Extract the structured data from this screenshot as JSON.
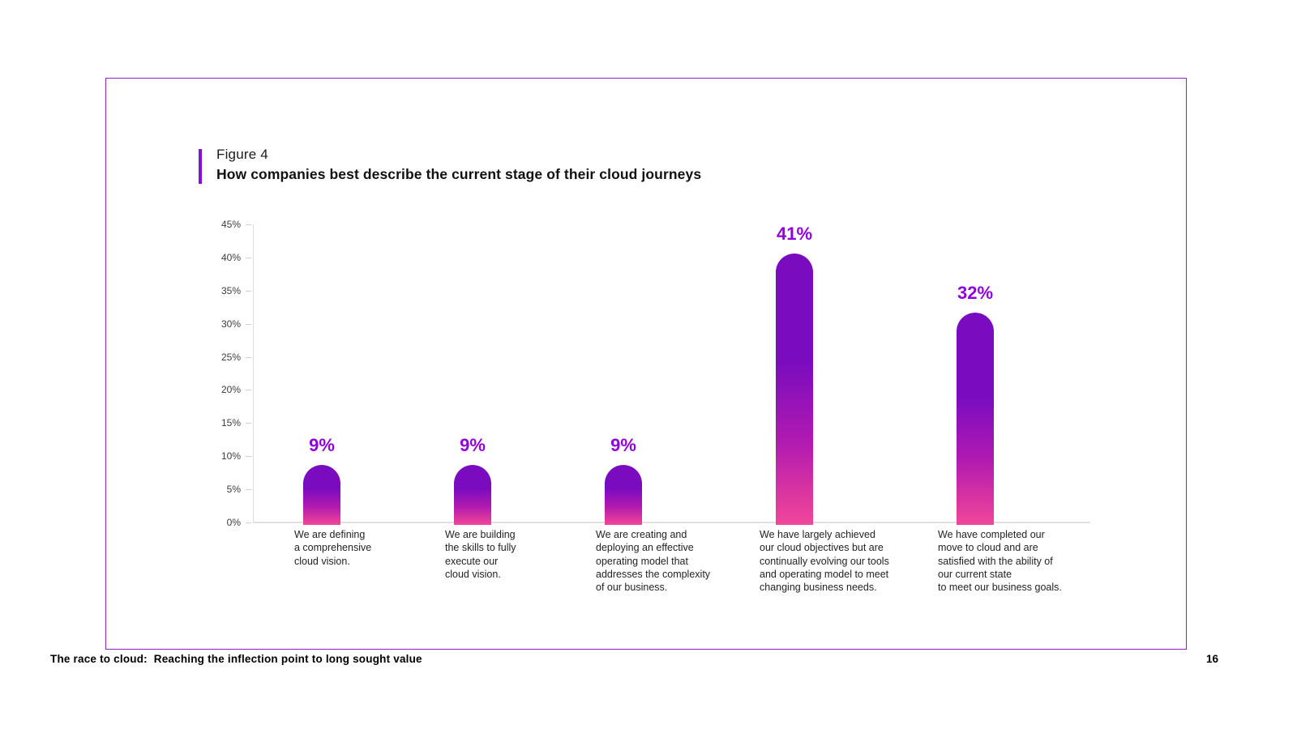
{
  "figure": {
    "label": "Figure 4",
    "title": "How companies best describe the current stage of their cloud journeys"
  },
  "chart_data": {
    "type": "bar",
    "title": "How companies best describe the current stage of their cloud journeys",
    "ylabel": "",
    "xlabel": "",
    "ylim": [
      0,
      45
    ],
    "ytick_step": 5,
    "ytick_labels": [
      "45%",
      "40%",
      "35%",
      "30%",
      "25%",
      "20%",
      "15%",
      "10%",
      "5%",
      "0%"
    ],
    "grid": false,
    "legend": false,
    "values": [
      9,
      9,
      9,
      41,
      32
    ],
    "value_labels": [
      "9%",
      "9%",
      "9%",
      "41%",
      "32%"
    ],
    "categories": [
      [
        "We are defining",
        "a comprehensive",
        "cloud vision."
      ],
      [
        "We are building",
        "the skills to fully",
        "execute our",
        "cloud vision."
      ],
      [
        "We are creating and",
        "deploying an effective",
        "operating model that",
        "addresses the complexity",
        "of our business."
      ],
      [
        "We have largely achieved",
        "our cloud objectives but are",
        "continually evolving our tools",
        "and operating model to meet",
        "changing business needs."
      ],
      [
        "We have completed our",
        "move to cloud and are",
        "satisfied with the ability of",
        "our current state",
        "to meet our business goals."
      ]
    ],
    "colors": {
      "bar_gradient_top": "#7a0cbf",
      "bar_gradient_bottom": "#f0489c",
      "value_label": "#9100e0",
      "frame_border": "#8f23c0",
      "accent_bar": "#8a0fd0",
      "axis_line": "#dcdcdc"
    }
  },
  "footer": {
    "title": "The race to cloud:  Reaching the inflection point to long sought value",
    "page_number": "16"
  }
}
